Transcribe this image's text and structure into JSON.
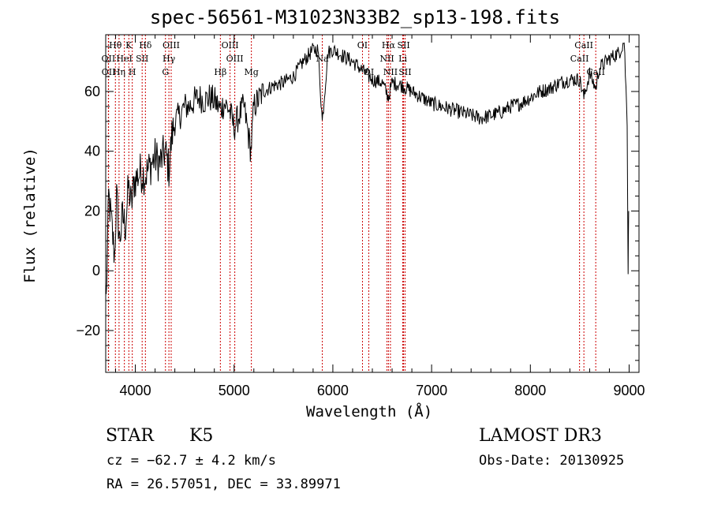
{
  "title": "spec-56561-M31023N33B2_sp13-198.fits",
  "chart_data": {
    "type": "line",
    "title": "spec-56561-M31023N33B2_sp13-198.fits",
    "xlabel": "Wavelength (Å)",
    "ylabel": "Flux (relative)",
    "xlim": [
      3700,
      9100
    ],
    "ylim": [
      -34,
      79
    ],
    "xticks": [
      4000,
      5000,
      6000,
      7000,
      8000,
      9000
    ],
    "yticks": [
      -20,
      0,
      20,
      40,
      60
    ],
    "xtick_labels": [
      "4000",
      "5000",
      "6000",
      "7000",
      "8000",
      "9000"
    ],
    "ytick_labels": [
      "−20",
      "0",
      "20",
      "40",
      "60"
    ],
    "spectrum_points": [
      [
        3705,
        -10
      ],
      [
        3730,
        25
      ],
      [
        3760,
        15
      ],
      [
        3790,
        5
      ],
      [
        3810,
        25
      ],
      [
        3840,
        10
      ],
      [
        3870,
        18
      ],
      [
        3900,
        15
      ],
      [
        3930,
        28
      ],
      [
        3960,
        22
      ],
      [
        3990,
        30
      ],
      [
        4050,
        33
      ],
      [
        4100,
        32
      ],
      [
        4150,
        35
      ],
      [
        4200,
        38
      ],
      [
        4250,
        36
      ],
      [
        4300,
        40
      ],
      [
        4340,
        34
      ],
      [
        4370,
        45
      ],
      [
        4400,
        50
      ],
      [
        4450,
        52
      ],
      [
        4500,
        55
      ],
      [
        4550,
        55
      ],
      [
        4600,
        57
      ],
      [
        4650,
        58
      ],
      [
        4700,
        57
      ],
      [
        4750,
        58
      ],
      [
        4800,
        57
      ],
      [
        4860,
        54
      ],
      [
        4900,
        56
      ],
      [
        4950,
        54
      ],
      [
        5000,
        48
      ],
      [
        5050,
        52
      ],
      [
        5100,
        55
      ],
      [
        5170,
        40
      ],
      [
        5200,
        55
      ],
      [
        5300,
        60
      ],
      [
        5400,
        62
      ],
      [
        5500,
        63
      ],
      [
        5600,
        65
      ],
      [
        5700,
        70
      ],
      [
        5800,
        74
      ],
      [
        5850,
        74
      ],
      [
        5893,
        50
      ],
      [
        5950,
        73
      ],
      [
        6000,
        74
      ],
      [
        6100,
        72
      ],
      [
        6200,
        70
      ],
      [
        6300,
        67
      ],
      [
        6400,
        64
      ],
      [
        6500,
        63
      ],
      [
        6563,
        58
      ],
      [
        6600,
        63
      ],
      [
        6700,
        62
      ],
      [
        6800,
        60
      ],
      [
        6900,
        58
      ],
      [
        7000,
        56
      ],
      [
        7100,
        55
      ],
      [
        7200,
        54
      ],
      [
        7300,
        53
      ],
      [
        7400,
        52
      ],
      [
        7500,
        51
      ],
      [
        7600,
        52
      ],
      [
        7700,
        53
      ],
      [
        7800,
        55
      ],
      [
        7900,
        56
      ],
      [
        8000,
        58
      ],
      [
        8100,
        60
      ],
      [
        8200,
        61
      ],
      [
        8300,
        63
      ],
      [
        8400,
        64
      ],
      [
        8500,
        64
      ],
      [
        8542,
        58
      ],
      [
        8600,
        66
      ],
      [
        8662,
        61
      ],
      [
        8700,
        68
      ],
      [
        8800,
        71
      ],
      [
        8900,
        73
      ],
      [
        8950,
        77
      ],
      [
        8980,
        50
      ],
      [
        8990,
        0
      ],
      [
        8995,
        20
      ]
    ],
    "line_labels": [
      {
        "text": "Hθ",
        "wavelength": 3798,
        "row": 0
      },
      {
        "text": "OII",
        "wavelength": 3727,
        "row": 1
      },
      {
        "text": "OII",
        "wavelength": 3729,
        "row": 2
      },
      {
        "text": "HeI",
        "wavelength": 3889,
        "row": 1
      },
      {
        "text": "Hη",
        "wavelength": 3835,
        "row": 2
      },
      {
        "text": "K",
        "wavelength": 3934,
        "row": 0
      },
      {
        "text": "SII",
        "wavelength": 4069,
        "row": 1
      },
      {
        "text": "H",
        "wavelength": 3969,
        "row": 2
      },
      {
        "text": "Hδ",
        "wavelength": 4102,
        "row": 0
      },
      {
        "text": "OIII",
        "wavelength": 4363,
        "row": 0
      },
      {
        "text": "Hγ",
        "wavelength": 4340,
        "row": 1
      },
      {
        "text": "G",
        "wavelength": 4305,
        "row": 2
      },
      {
        "text": "OIII",
        "wavelength": 4959,
        "row": 0
      },
      {
        "text": "OIII",
        "wavelength": 5007,
        "row": 1
      },
      {
        "text": "Hβ",
        "wavelength": 4861,
        "row": 2
      },
      {
        "text": "Mg",
        "wavelength": 5175,
        "row": 2
      },
      {
        "text": "Na",
        "wavelength": 5893,
        "row": 1
      },
      {
        "text": "OI",
        "wavelength": 6300,
        "row": 0
      },
      {
        "text": "OI",
        "wavelength": 6364,
        "row": 2
      },
      {
        "text": "Hα",
        "wavelength": 6563,
        "row": 0
      },
      {
        "text": "SII",
        "wavelength": 6716,
        "row": 0
      },
      {
        "text": "NII",
        "wavelength": 6548,
        "row": 1
      },
      {
        "text": "Li",
        "wavelength": 6708,
        "row": 1
      },
      {
        "text": "NII",
        "wavelength": 6583,
        "row": 2
      },
      {
        "text": "SII",
        "wavelength": 6731,
        "row": 2
      },
      {
        "text": "CaII",
        "wavelength": 8542,
        "row": 0
      },
      {
        "text": "CaII",
        "wavelength": 8498,
        "row": 1
      },
      {
        "text": "CaII",
        "wavelength": 8662,
        "row": 2
      }
    ],
    "line_markers": [
      3727,
      3729,
      3798,
      3835,
      3889,
      3934,
      3969,
      4069,
      4102,
      4305,
      4340,
      4363,
      4861,
      4959,
      5007,
      5175,
      5893,
      6300,
      6364,
      6548,
      6563,
      6583,
      6708,
      6716,
      6731,
      8498,
      8542,
      8662
    ],
    "marker_color": "#cc0000"
  },
  "info": {
    "class": "STAR",
    "subclass": "K5",
    "cz": "cz = −62.7 ± 4.2 km/s",
    "radec": "RA =  26.57051, DEC =  33.89971",
    "survey": "LAMOST DR3",
    "obsdate": "Obs-Date: 20130925"
  }
}
